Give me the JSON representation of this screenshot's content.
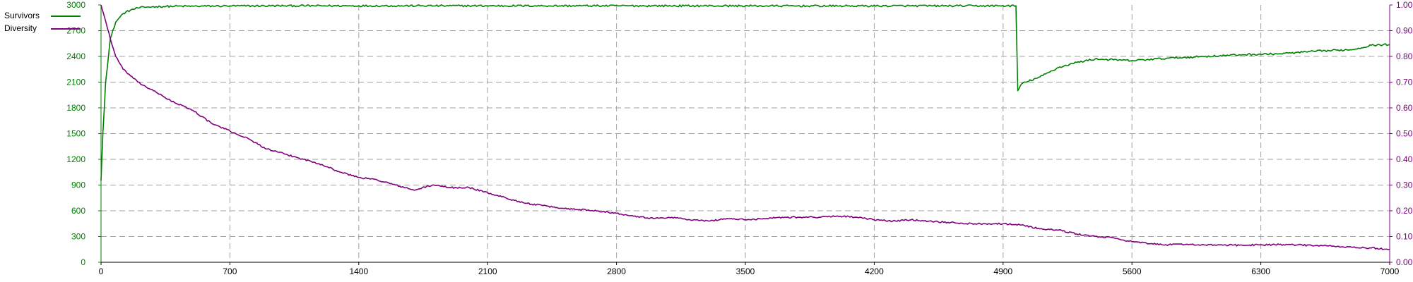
{
  "chart_data": {
    "type": "line",
    "title": "",
    "xlabel": "",
    "ylabel": "",
    "xlim": [
      0,
      7000
    ],
    "ylim_left": [
      0,
      3000
    ],
    "ylim_right": [
      0,
      1.0
    ],
    "grid": true,
    "legend_position": "top-left",
    "x_ticks": [
      "0",
      "700",
      "1400",
      "2100",
      "2800",
      "3500",
      "4200",
      "4900",
      "5600",
      "6300",
      "7000"
    ],
    "y_left_ticks": [
      "0",
      "300",
      "600",
      "900",
      "1200",
      "1500",
      "1800",
      "2100",
      "2400",
      "2700",
      "3000"
    ],
    "y_right_ticks": [
      "0.00",
      "0.10",
      "0.20",
      "0.30",
      "0.40",
      "0.50",
      "0.60",
      "0.70",
      "0.80",
      "0.90",
      "1.00"
    ],
    "series": [
      {
        "name": "Survivors",
        "axis": "left",
        "color": "#008000",
        "x": [
          0,
          10,
          25,
          50,
          80,
          120,
          160,
          200,
          250,
          300,
          400,
          500,
          700,
          1000,
          2000,
          3000,
          4000,
          4970,
          4980,
          5000,
          5100,
          5200,
          5300,
          5400,
          5500,
          5600,
          5800,
          6000,
          6200,
          6400,
          6600,
          6800,
          6900,
          7000
        ],
        "y": [
          950,
          1500,
          2100,
          2600,
          2800,
          2900,
          2940,
          2965,
          2975,
          2980,
          2985,
          2985,
          2988,
          2990,
          2990,
          2990,
          2988,
          2990,
          2000,
          2080,
          2160,
          2270,
          2330,
          2370,
          2360,
          2350,
          2380,
          2400,
          2420,
          2430,
          2460,
          2480,
          2530,
          2540
        ]
      },
      {
        "name": "Diversity",
        "axis": "right",
        "color": "#800080",
        "x": [
          0,
          20,
          50,
          80,
          120,
          200,
          300,
          400,
          500,
          600,
          700,
          800,
          900,
          1000,
          1100,
          1200,
          1300,
          1400,
          1500,
          1600,
          1700,
          1800,
          1900,
          2000,
          2100,
          2200,
          2300,
          2400,
          2500,
          2600,
          2700,
          2800,
          2900,
          3000,
          3100,
          3200,
          3300,
          3400,
          3500,
          3600,
          3700,
          3800,
          3900,
          4000,
          4100,
          4200,
          4300,
          4400,
          4500,
          4600,
          4700,
          4800,
          4900,
          5000,
          5100,
          5200,
          5300,
          5400,
          5500,
          5600,
          5700,
          5800,
          5900,
          6000,
          6100,
          6200,
          6300,
          6400,
          6500,
          6600,
          6700,
          6800,
          6900,
          7000
        ],
        "y": [
          1.0,
          0.95,
          0.87,
          0.8,
          0.75,
          0.7,
          0.66,
          0.62,
          0.59,
          0.54,
          0.51,
          0.48,
          0.44,
          0.42,
          0.4,
          0.38,
          0.35,
          0.33,
          0.32,
          0.3,
          0.28,
          0.3,
          0.29,
          0.29,
          0.27,
          0.25,
          0.23,
          0.22,
          0.21,
          0.205,
          0.2,
          0.19,
          0.18,
          0.17,
          0.175,
          0.165,
          0.16,
          0.17,
          0.165,
          0.17,
          0.175,
          0.175,
          0.175,
          0.18,
          0.175,
          0.165,
          0.16,
          0.165,
          0.16,
          0.155,
          0.15,
          0.15,
          0.15,
          0.145,
          0.13,
          0.125,
          0.11,
          0.1,
          0.095,
          0.08,
          0.072,
          0.068,
          0.07,
          0.067,
          0.067,
          0.066,
          0.068,
          0.069,
          0.067,
          0.065,
          0.062,
          0.058,
          0.055,
          0.05
        ]
      }
    ]
  }
}
